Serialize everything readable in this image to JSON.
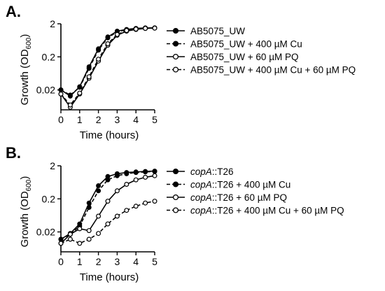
{
  "chart_data": [
    {
      "type": "line",
      "panel_label": "A.",
      "xlabel": "Time (hours)",
      "ylabel": "Growth (OD",
      "ylabel_sub": "600",
      "ylabel_close": ")",
      "yscale": "log",
      "xlim": [
        0,
        5
      ],
      "ylim": [
        0.005,
        2
      ],
      "xticks": [
        "0",
        "1",
        "2",
        "3",
        "4",
        "5"
      ],
      "yticks": [
        "2",
        "0.2",
        "0.02"
      ],
      "x": [
        0,
        0.5,
        1,
        1.5,
        2,
        2.5,
        3,
        3.5,
        4,
        4.5,
        5
      ],
      "series": [
        {
          "name": "AB5075_UW",
          "marker": "filled",
          "dash": "solid",
          "values": [
            0.02,
            0.013,
            0.025,
            0.1,
            0.35,
            0.8,
            1.2,
            1.35,
            1.45,
            1.5,
            1.5
          ]
        },
        {
          "name": "AB5075_UW + 400 µM Cu",
          "marker": "filled",
          "dash": "dashed",
          "values": [
            0.02,
            0.014,
            0.024,
            0.09,
            0.32,
            0.75,
            1.15,
            1.32,
            1.42,
            1.47,
            1.48
          ]
        },
        {
          "name": "AB5075_UW + 60 µM PQ",
          "marker": "open",
          "dash": "solid",
          "values": [
            0.015,
            0.006,
            0.015,
            0.045,
            0.15,
            0.45,
            0.9,
            1.2,
            1.35,
            1.45,
            1.5
          ]
        },
        {
          "name": "AB5075_UW + 400 µM Cu + 60 µM PQ",
          "marker": "open",
          "dash": "dashed",
          "values": [
            0.015,
            0.007,
            0.016,
            0.05,
            0.17,
            0.5,
            0.95,
            1.25,
            1.38,
            1.45,
            1.48
          ]
        }
      ]
    },
    {
      "type": "line",
      "panel_label": "B.",
      "xlabel": "Time (hours)",
      "ylabel": "Growth (OD",
      "ylabel_sub": "600",
      "ylabel_close": ")",
      "yscale": "log",
      "xlim": [
        0,
        5
      ],
      "ylim": [
        0.005,
        2
      ],
      "xticks": [
        "0",
        "1",
        "2",
        "3",
        "4",
        "5"
      ],
      "yticks": [
        "2",
        "0.2",
        "0.02"
      ],
      "x": [
        0,
        0.5,
        1,
        1.5,
        2,
        2.5,
        3,
        3.5,
        4,
        4.5,
        5
      ],
      "series": [
        {
          "name_italic": "copA",
          "name_rest": "::T26",
          "marker": "filled",
          "dash": "solid",
          "values": [
            0.012,
            0.018,
            0.035,
            0.15,
            0.5,
            0.95,
            1.15,
            1.25,
            1.3,
            1.35,
            1.38
          ]
        },
        {
          "name_italic": "copA",
          "name_rest": "::T26 + 400 µM Cu",
          "marker": "filled",
          "dash": "dashed",
          "values": [
            0.012,
            0.017,
            0.03,
            0.11,
            0.35,
            0.75,
            1.0,
            1.15,
            1.25,
            1.3,
            1.35
          ]
        },
        {
          "name_italic": "copA",
          "name_rest": "::T26 + 60 µM PQ",
          "marker": "open",
          "dash": "solid",
          "values": [
            0.009,
            0.017,
            0.025,
            0.022,
            0.06,
            0.17,
            0.35,
            0.55,
            0.75,
            0.9,
            1.0
          ]
        },
        {
          "name_italic": "copA",
          "name_rest": "::T26 + 400 µM Cu + 60 µM PQ",
          "marker": "open",
          "dash": "dashed",
          "values": [
            0.009,
            0.012,
            0.009,
            0.012,
            0.018,
            0.035,
            0.06,
            0.09,
            0.12,
            0.15,
            0.17
          ]
        }
      ]
    }
  ]
}
